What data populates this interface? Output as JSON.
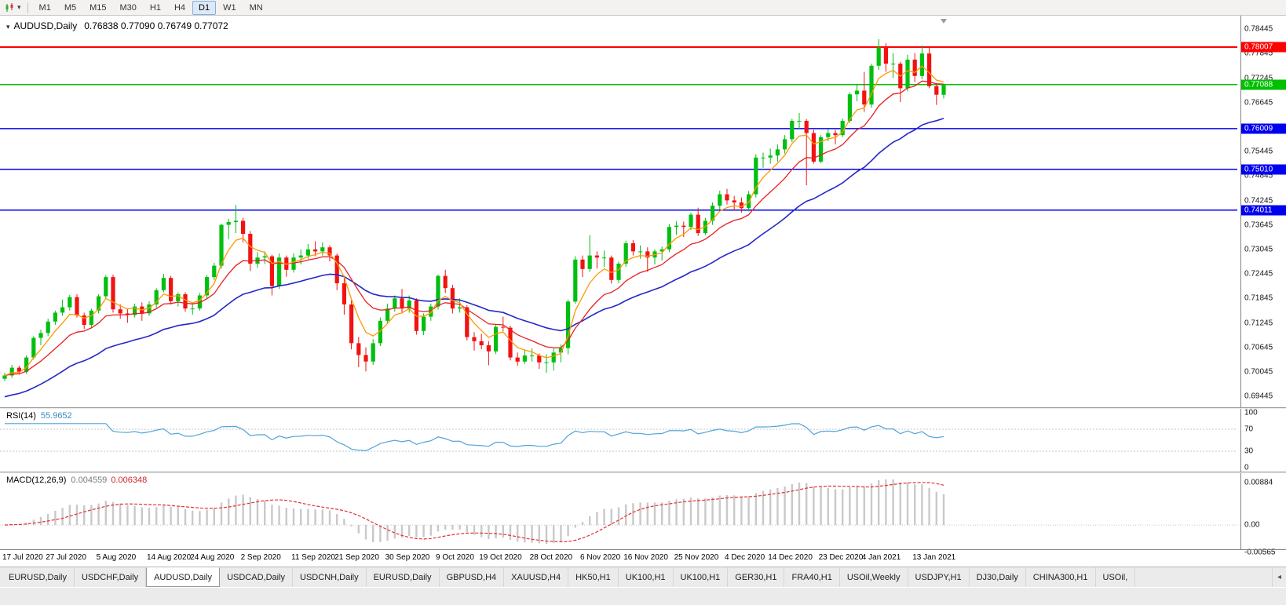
{
  "toolbar": {
    "timeframes": [
      "M1",
      "M5",
      "M15",
      "M30",
      "H1",
      "H4",
      "D1",
      "W1",
      "MN"
    ],
    "active_timeframe": "D1"
  },
  "chart": {
    "symbol_tf": "AUDUSD,Daily",
    "ohlc": "0.76838 0.77090 0.76749 0.77072",
    "price_axis_labels": [
      "0.78445",
      "0.77845",
      "0.77245",
      "0.76645",
      "0.75445",
      "0.74845",
      "0.74245",
      "0.73645",
      "0.73045",
      "0.72445",
      "0.71845",
      "0.71245",
      "0.70645",
      "0.70045",
      "0.69445"
    ],
    "hlines": [
      {
        "price": 0.78007,
        "label": "0.78007",
        "color": "#ff0000",
        "width": 2
      },
      {
        "price": 0.77088,
        "label": "0.77088",
        "color": "#00c000",
        "width": 1.5
      },
      {
        "price": 0.76009,
        "label": "0.76009",
        "color": "#0000f0",
        "width": 1.5
      },
      {
        "price": 0.7501,
        "label": "0.75010",
        "color": "#0000f0",
        "width": 1.5
      },
      {
        "price": 0.74011,
        "label": "0.74011",
        "color": "#0000f0",
        "width": 1.5
      }
    ],
    "date_labels": [
      {
        "t": "17 Jul 2020",
        "i": 0
      },
      {
        "t": "27 Jul 2020",
        "i": 6
      },
      {
        "t": "5 Aug 2020",
        "i": 13
      },
      {
        "t": "14 Aug 2020",
        "i": 20
      },
      {
        "t": "24 Aug 2020",
        "i": 26
      },
      {
        "t": "2 Sep 2020",
        "i": 33
      },
      {
        "t": "11 Sep 2020",
        "i": 40
      },
      {
        "t": "21 Sep 2020",
        "i": 46
      },
      {
        "t": "30 Sep 2020",
        "i": 53
      },
      {
        "t": "9 Oct 2020",
        "i": 60
      },
      {
        "t": "19 Oct 2020",
        "i": 66
      },
      {
        "t": "28 Oct 2020",
        "i": 73
      },
      {
        "t": "6 Nov 2020",
        "i": 80
      },
      {
        "t": "16 Nov 2020",
        "i": 86
      },
      {
        "t": "25 Nov 2020",
        "i": 93
      },
      {
        "t": "4 Dec 2020",
        "i": 100
      },
      {
        "t": "14 Dec 2020",
        "i": 106
      },
      {
        "t": "23 Dec 2020",
        "i": 113
      },
      {
        "t": "4 Jan 2021",
        "i": 119
      },
      {
        "t": "13 Jan 2021",
        "i": 126
      }
    ]
  },
  "rsi": {
    "name": "RSI(14)",
    "value": "55.9652",
    "levels": [
      "100",
      "70",
      "30",
      "0"
    ],
    "color": "#4fa3d8"
  },
  "macd": {
    "name": "MACD(12,26,9)",
    "value_main": "0.004559",
    "value_signal": "0.006348",
    "levels": [
      "0.00884",
      "0.00",
      "-0.00565"
    ],
    "hist_color": "#c9c9c9",
    "signal_color": "#e23131"
  },
  "tabs": {
    "items": [
      "EURUSD,Daily",
      "USDCHF,Daily",
      "AUDUSD,Daily",
      "USDCAD,Daily",
      "USDCNH,Daily",
      "EURUSD,Daily",
      "GBPUSD,H4",
      "XAUUSD,H4",
      "HK50,H1",
      "UK100,H1",
      "UK100,H1",
      "GER30,H1",
      "FRA40,H1",
      "USOil,Weekly",
      "USDJPY,H1",
      "DJ30,Daily",
      "CHINA300,H1",
      "USOil,"
    ],
    "active_index": 2,
    "scroll_arrow": "◂"
  },
  "chart_data": {
    "type": "candlestick",
    "symbol": "AUDUSD",
    "timeframe": "Daily",
    "title": "AUDUSD,Daily 0.76838 0.77090 0.76749 0.77072",
    "y_axis": {
      "top_price": 0.78776,
      "bottom_price": 0.6918,
      "grid_step": 0.006
    },
    "colors": {
      "bull": "#00bf10",
      "bear": "#f21212",
      "ma_fast": "#ff9800",
      "ma_mid": "#e82020",
      "ma_slow": "#2328c8"
    },
    "indicators": {
      "ma_fast_period": 5,
      "ma_mid_period": 12,
      "ma_slow_period": 30,
      "rsi": "RSI(14)",
      "macd": "MACD(12,26,9)"
    },
    "candles": [
      [
        0.6988,
        0.7002,
        0.6982,
        0.6996
      ],
      [
        0.6996,
        0.7022,
        0.699,
        0.7015
      ],
      [
        0.7015,
        0.702,
        0.6998,
        0.7005
      ],
      [
        0.7005,
        0.7045,
        0.7,
        0.704
      ],
      [
        0.704,
        0.7092,
        0.7035,
        0.7088
      ],
      [
        0.7088,
        0.7108,
        0.707,
        0.71
      ],
      [
        0.71,
        0.7135,
        0.7092,
        0.7128
      ],
      [
        0.7128,
        0.7155,
        0.712,
        0.715
      ],
      [
        0.715,
        0.7182,
        0.7142,
        0.7163
      ],
      [
        0.7163,
        0.7193,
        0.7155,
        0.7188
      ],
      [
        0.7188,
        0.7195,
        0.7138,
        0.7143
      ],
      [
        0.7143,
        0.715,
        0.711,
        0.712
      ],
      [
        0.712,
        0.716,
        0.7112,
        0.7155
      ],
      [
        0.7155,
        0.7195,
        0.7148,
        0.719
      ],
      [
        0.719,
        0.7242,
        0.7183,
        0.7237
      ],
      [
        0.7237,
        0.7243,
        0.715,
        0.7158
      ],
      [
        0.7158,
        0.717,
        0.7135,
        0.7148
      ],
      [
        0.7148,
        0.716,
        0.7125,
        0.7144
      ],
      [
        0.7144,
        0.7172,
        0.7138,
        0.7165
      ],
      [
        0.7165,
        0.7175,
        0.713,
        0.7148
      ],
      [
        0.7148,
        0.7178,
        0.7142,
        0.717
      ],
      [
        0.717,
        0.721,
        0.7162,
        0.7205
      ],
      [
        0.7205,
        0.7245,
        0.72,
        0.7235
      ],
      [
        0.7235,
        0.724,
        0.717,
        0.7178
      ],
      [
        0.7178,
        0.72,
        0.7165,
        0.7195
      ],
      [
        0.7195,
        0.72,
        0.7152,
        0.716
      ],
      [
        0.716,
        0.7175,
        0.7145,
        0.716
      ],
      [
        0.716,
        0.7198,
        0.7155,
        0.7192
      ],
      [
        0.7192,
        0.7242,
        0.7185,
        0.7237
      ],
      [
        0.7237,
        0.7272,
        0.723,
        0.7265
      ],
      [
        0.7265,
        0.7368,
        0.7258,
        0.7365
      ],
      [
        0.7365,
        0.738,
        0.733,
        0.7372
      ],
      [
        0.7372,
        0.7414,
        0.7345,
        0.7375
      ],
      [
        0.7375,
        0.7382,
        0.7322,
        0.7343
      ],
      [
        0.7343,
        0.735,
        0.7252,
        0.727
      ],
      [
        0.727,
        0.7298,
        0.726,
        0.7285
      ],
      [
        0.7285,
        0.73,
        0.727,
        0.7288
      ],
      [
        0.7288,
        0.7292,
        0.7192,
        0.7215
      ],
      [
        0.7215,
        0.7295,
        0.7208,
        0.7285
      ],
      [
        0.7285,
        0.729,
        0.7238,
        0.7255
      ],
      [
        0.7255,
        0.7295,
        0.7248,
        0.7285
      ],
      [
        0.7285,
        0.7305,
        0.7268,
        0.729
      ],
      [
        0.729,
        0.7318,
        0.7282,
        0.7305
      ],
      [
        0.7305,
        0.7325,
        0.7288,
        0.73
      ],
      [
        0.73,
        0.7322,
        0.729,
        0.731
      ],
      [
        0.731,
        0.7315,
        0.7275,
        0.729
      ],
      [
        0.729,
        0.7295,
        0.7205,
        0.7222
      ],
      [
        0.7222,
        0.724,
        0.7145,
        0.717
      ],
      [
        0.717,
        0.718,
        0.706,
        0.7075
      ],
      [
        0.7075,
        0.709,
        0.7016,
        0.7046
      ],
      [
        0.7046,
        0.7065,
        0.7006,
        0.703
      ],
      [
        0.703,
        0.7085,
        0.7022,
        0.7075
      ],
      [
        0.7075,
        0.7138,
        0.7068,
        0.713
      ],
      [
        0.713,
        0.7172,
        0.7122,
        0.716
      ],
      [
        0.716,
        0.7192,
        0.7152,
        0.7185
      ],
      [
        0.7185,
        0.7208,
        0.7148,
        0.716
      ],
      [
        0.716,
        0.7192,
        0.715,
        0.718
      ],
      [
        0.718,
        0.7185,
        0.7096,
        0.7105
      ],
      [
        0.7105,
        0.7148,
        0.7095,
        0.714
      ],
      [
        0.714,
        0.7172,
        0.713,
        0.7165
      ],
      [
        0.7165,
        0.7243,
        0.7158,
        0.724
      ],
      [
        0.724,
        0.7255,
        0.7198,
        0.721
      ],
      [
        0.721,
        0.7218,
        0.7148,
        0.716
      ],
      [
        0.716,
        0.7185,
        0.715,
        0.7163
      ],
      [
        0.7163,
        0.7168,
        0.7082,
        0.709
      ],
      [
        0.709,
        0.7102,
        0.7057,
        0.708
      ],
      [
        0.708,
        0.7098,
        0.706,
        0.707
      ],
      [
        0.707,
        0.708,
        0.7021,
        0.7055
      ],
      [
        0.7055,
        0.712,
        0.7048,
        0.7115
      ],
      [
        0.7115,
        0.714,
        0.7105,
        0.7113
      ],
      [
        0.7113,
        0.7118,
        0.7033,
        0.704
      ],
      [
        0.704,
        0.7052,
        0.702,
        0.703
      ],
      [
        0.703,
        0.706,
        0.7024,
        0.7045
      ],
      [
        0.7045,
        0.7062,
        0.703,
        0.7045
      ],
      [
        0.7045,
        0.705,
        0.7012,
        0.7028
      ],
      [
        0.7028,
        0.7048,
        0.7002,
        0.7028
      ],
      [
        0.7028,
        0.7062,
        0.7008,
        0.7052
      ],
      [
        0.7052,
        0.7072,
        0.7028,
        0.7063
      ],
      [
        0.7063,
        0.7182,
        0.7048,
        0.7177
      ],
      [
        0.7177,
        0.7288,
        0.7172,
        0.728
      ],
      [
        0.728,
        0.729,
        0.7237,
        0.7257
      ],
      [
        0.7257,
        0.734,
        0.725,
        0.729
      ],
      [
        0.729,
        0.73,
        0.7258,
        0.7285
      ],
      [
        0.7285,
        0.7302,
        0.7262,
        0.7285
      ],
      [
        0.7285,
        0.729,
        0.7221,
        0.723
      ],
      [
        0.723,
        0.7275,
        0.7222,
        0.727
      ],
      [
        0.727,
        0.7326,
        0.7262,
        0.732
      ],
      [
        0.732,
        0.7328,
        0.729,
        0.73
      ],
      [
        0.73,
        0.7315,
        0.7282,
        0.73
      ],
      [
        0.73,
        0.731,
        0.725,
        0.7285
      ],
      [
        0.7285,
        0.7305,
        0.7268,
        0.73
      ],
      [
        0.73,
        0.7312,
        0.7278,
        0.7305
      ],
      [
        0.7305,
        0.7367,
        0.7298,
        0.736
      ],
      [
        0.736,
        0.7374,
        0.734,
        0.7363
      ],
      [
        0.7363,
        0.7373,
        0.7335,
        0.736
      ],
      [
        0.736,
        0.7395,
        0.7352,
        0.739
      ],
      [
        0.739,
        0.7407,
        0.7338,
        0.7345
      ],
      [
        0.7345,
        0.7382,
        0.734,
        0.7375
      ],
      [
        0.7375,
        0.742,
        0.7365,
        0.7412
      ],
      [
        0.7412,
        0.7449,
        0.7402,
        0.744
      ],
      [
        0.744,
        0.7453,
        0.7415,
        0.7425
      ],
      [
        0.7425,
        0.7436,
        0.74,
        0.742
      ],
      [
        0.742,
        0.7432,
        0.7395,
        0.7406
      ],
      [
        0.7406,
        0.7448,
        0.7398,
        0.744
      ],
      [
        0.744,
        0.7538,
        0.7432,
        0.753
      ],
      [
        0.753,
        0.7542,
        0.7505,
        0.753
      ],
      [
        0.753,
        0.7552,
        0.7515,
        0.7535
      ],
      [
        0.7535,
        0.7562,
        0.752,
        0.755
      ],
      [
        0.755,
        0.7585,
        0.754,
        0.7575
      ],
      [
        0.7575,
        0.7625,
        0.7568,
        0.762
      ],
      [
        0.762,
        0.7639,
        0.7601,
        0.762
      ],
      [
        0.762,
        0.7624,
        0.7462,
        0.759
      ],
      [
        0.759,
        0.7598,
        0.7515,
        0.752
      ],
      [
        0.752,
        0.7585,
        0.7516,
        0.758
      ],
      [
        0.758,
        0.76,
        0.757,
        0.759
      ],
      [
        0.759,
        0.7598,
        0.7562,
        0.7585
      ],
      [
        0.7585,
        0.7625,
        0.758,
        0.762
      ],
      [
        0.762,
        0.769,
        0.7615,
        0.7685
      ],
      [
        0.7685,
        0.7708,
        0.7668,
        0.7694
      ],
      [
        0.7694,
        0.774,
        0.7642,
        0.766
      ],
      [
        0.766,
        0.776,
        0.7652,
        0.7755
      ],
      [
        0.7755,
        0.782,
        0.7745,
        0.78
      ],
      [
        0.78,
        0.781,
        0.774,
        0.776
      ],
      [
        0.776,
        0.7786,
        0.7725,
        0.776
      ],
      [
        0.776,
        0.7765,
        0.7666,
        0.77
      ],
      [
        0.77,
        0.7782,
        0.7692,
        0.777
      ],
      [
        0.777,
        0.7786,
        0.7715,
        0.773
      ],
      [
        0.773,
        0.7805,
        0.7722,
        0.7785
      ],
      [
        0.7785,
        0.78,
        0.77,
        0.7705
      ],
      [
        0.7705,
        0.7712,
        0.7659,
        0.7684
      ],
      [
        0.76838,
        0.7709,
        0.76749,
        0.77072
      ]
    ]
  }
}
